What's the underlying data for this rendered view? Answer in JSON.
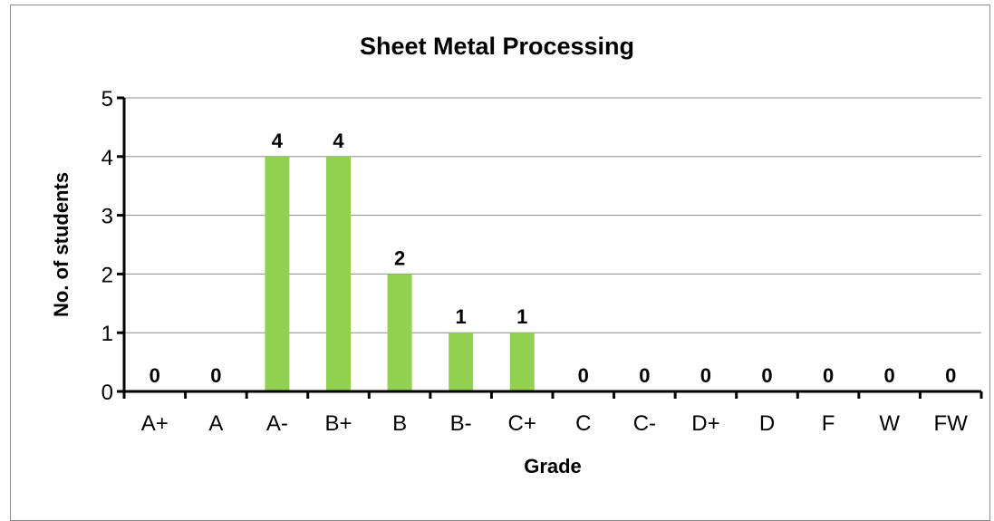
{
  "chart_data": {
    "type": "bar",
    "title": "Sheet Metal Processing",
    "xlabel": "Grade",
    "ylabel": "No. of students",
    "categories": [
      "A+",
      "A",
      "A-",
      "B+",
      "B",
      "B-",
      "C+",
      "C",
      "C-",
      "D+",
      "D",
      "F",
      "W",
      "FW"
    ],
    "values": [
      0,
      0,
      4,
      4,
      2,
      1,
      1,
      0,
      0,
      0,
      0,
      0,
      0,
      0
    ],
    "ylim": [
      0,
      5
    ],
    "yticks": [
      0,
      1,
      2,
      3,
      4,
      5
    ],
    "grid": true,
    "legend": "none",
    "bar_color": "#92d050",
    "grid_color": "#8c8c8c"
  }
}
